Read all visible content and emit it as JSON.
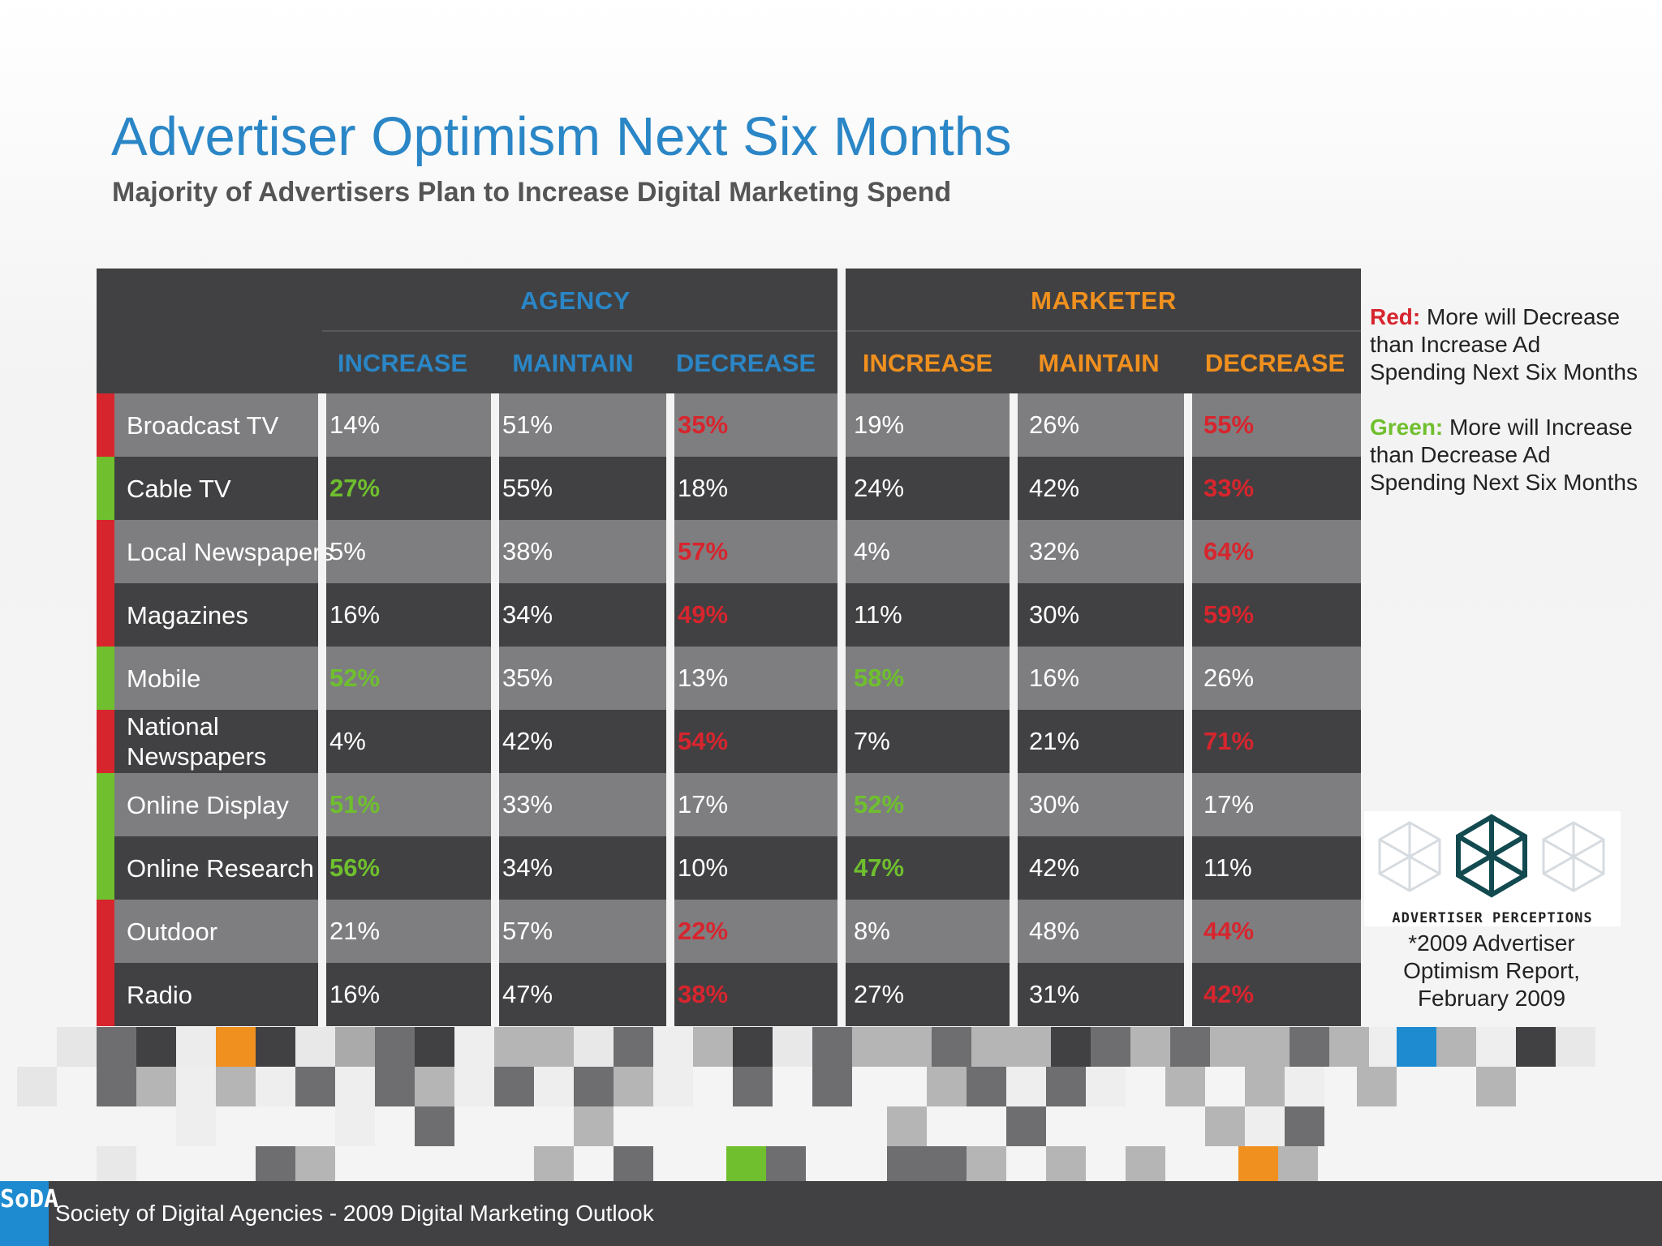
{
  "title": "Advertiser Optimism Next Six Months",
  "subtitle": "Majority of Advertisers Plan to Increase Digital Marketing Spend",
  "groups": {
    "agency": "AGENCY",
    "marketer": "MARKETER"
  },
  "columns": [
    "INCREASE",
    "MAINTAIN",
    "DECREASE",
    "INCREASE",
    "MAINTAIN",
    "DECREASE"
  ],
  "rows": [
    {
      "label": "Broadcast TV",
      "flag": "red",
      "values": [
        "14%",
        "51%",
        "35%",
        "19%",
        "26%",
        "55%"
      ],
      "highlight": [
        null,
        null,
        "red",
        null,
        null,
        "red"
      ]
    },
    {
      "label": "Cable TV",
      "flag": "green",
      "values": [
        "27%",
        "55%",
        "18%",
        "24%",
        "42%",
        "33%"
      ],
      "highlight": [
        "green",
        null,
        null,
        null,
        null,
        "red"
      ]
    },
    {
      "label": "Local Newspapers",
      "flag": "red",
      "values": [
        "5%",
        "38%",
        "57%",
        "4%",
        "32%",
        "64%"
      ],
      "highlight": [
        null,
        null,
        "red",
        null,
        null,
        "red"
      ]
    },
    {
      "label": "Magazines",
      "flag": "red",
      "values": [
        "16%",
        "34%",
        "49%",
        "11%",
        "30%",
        "59%"
      ],
      "highlight": [
        null,
        null,
        "red",
        null,
        null,
        "red"
      ]
    },
    {
      "label": "Mobile",
      "flag": "green",
      "values": [
        "52%",
        "35%",
        "13%",
        "58%",
        "16%",
        "26%"
      ],
      "highlight": [
        "green",
        null,
        null,
        "green",
        null,
        null
      ]
    },
    {
      "label": "National Newspapers",
      "flag": "red",
      "values": [
        "4%",
        "42%",
        "54%",
        "7%",
        "21%",
        "71%"
      ],
      "highlight": [
        null,
        null,
        "red",
        null,
        null,
        "red"
      ]
    },
    {
      "label": "Online Display",
      "flag": "green",
      "values": [
        "51%",
        "33%",
        "17%",
        "52%",
        "30%",
        "17%"
      ],
      "highlight": [
        "green",
        null,
        null,
        "green",
        null,
        null
      ]
    },
    {
      "label": "Online Research",
      "flag": "green",
      "values": [
        "56%",
        "34%",
        "10%",
        "47%",
        "42%",
        "11%"
      ],
      "highlight": [
        "green",
        null,
        null,
        "green",
        null,
        null
      ]
    },
    {
      "label": "Outdoor",
      "flag": "red",
      "values": [
        "21%",
        "57%",
        "22%",
        "8%",
        "48%",
        "44%"
      ],
      "highlight": [
        null,
        null,
        "red",
        null,
        null,
        "red"
      ]
    },
    {
      "label": "Radio",
      "flag": "red",
      "values": [
        "16%",
        "47%",
        "38%",
        "27%",
        "31%",
        "42%"
      ],
      "highlight": [
        null,
        null,
        "red",
        null,
        null,
        "red"
      ]
    }
  ],
  "legend": {
    "red_key": "Red:",
    "red_text": " More will Decrease than Increase Ad Spending Next Six Months",
    "green_key": "Green:",
    "green_text": " More will Increase than Decrease Ad Spending Next Six Months"
  },
  "logo_text": "ADVERTISER PERCEPTIONS",
  "source": "*2009 Advertiser Optimism Report, February 2009",
  "footer": {
    "logo": "SoDA",
    "text": "Society of Digital Agencies - 2009 Digital Marketing Outlook"
  },
  "colors": {
    "title": "#2a86c6",
    "agency": "#2a86c6",
    "marketer": "#f0901e",
    "red": "#d7252e",
    "green": "#6fbf2e",
    "row_light": "#7e7e80",
    "row_dark": "#414143"
  }
}
